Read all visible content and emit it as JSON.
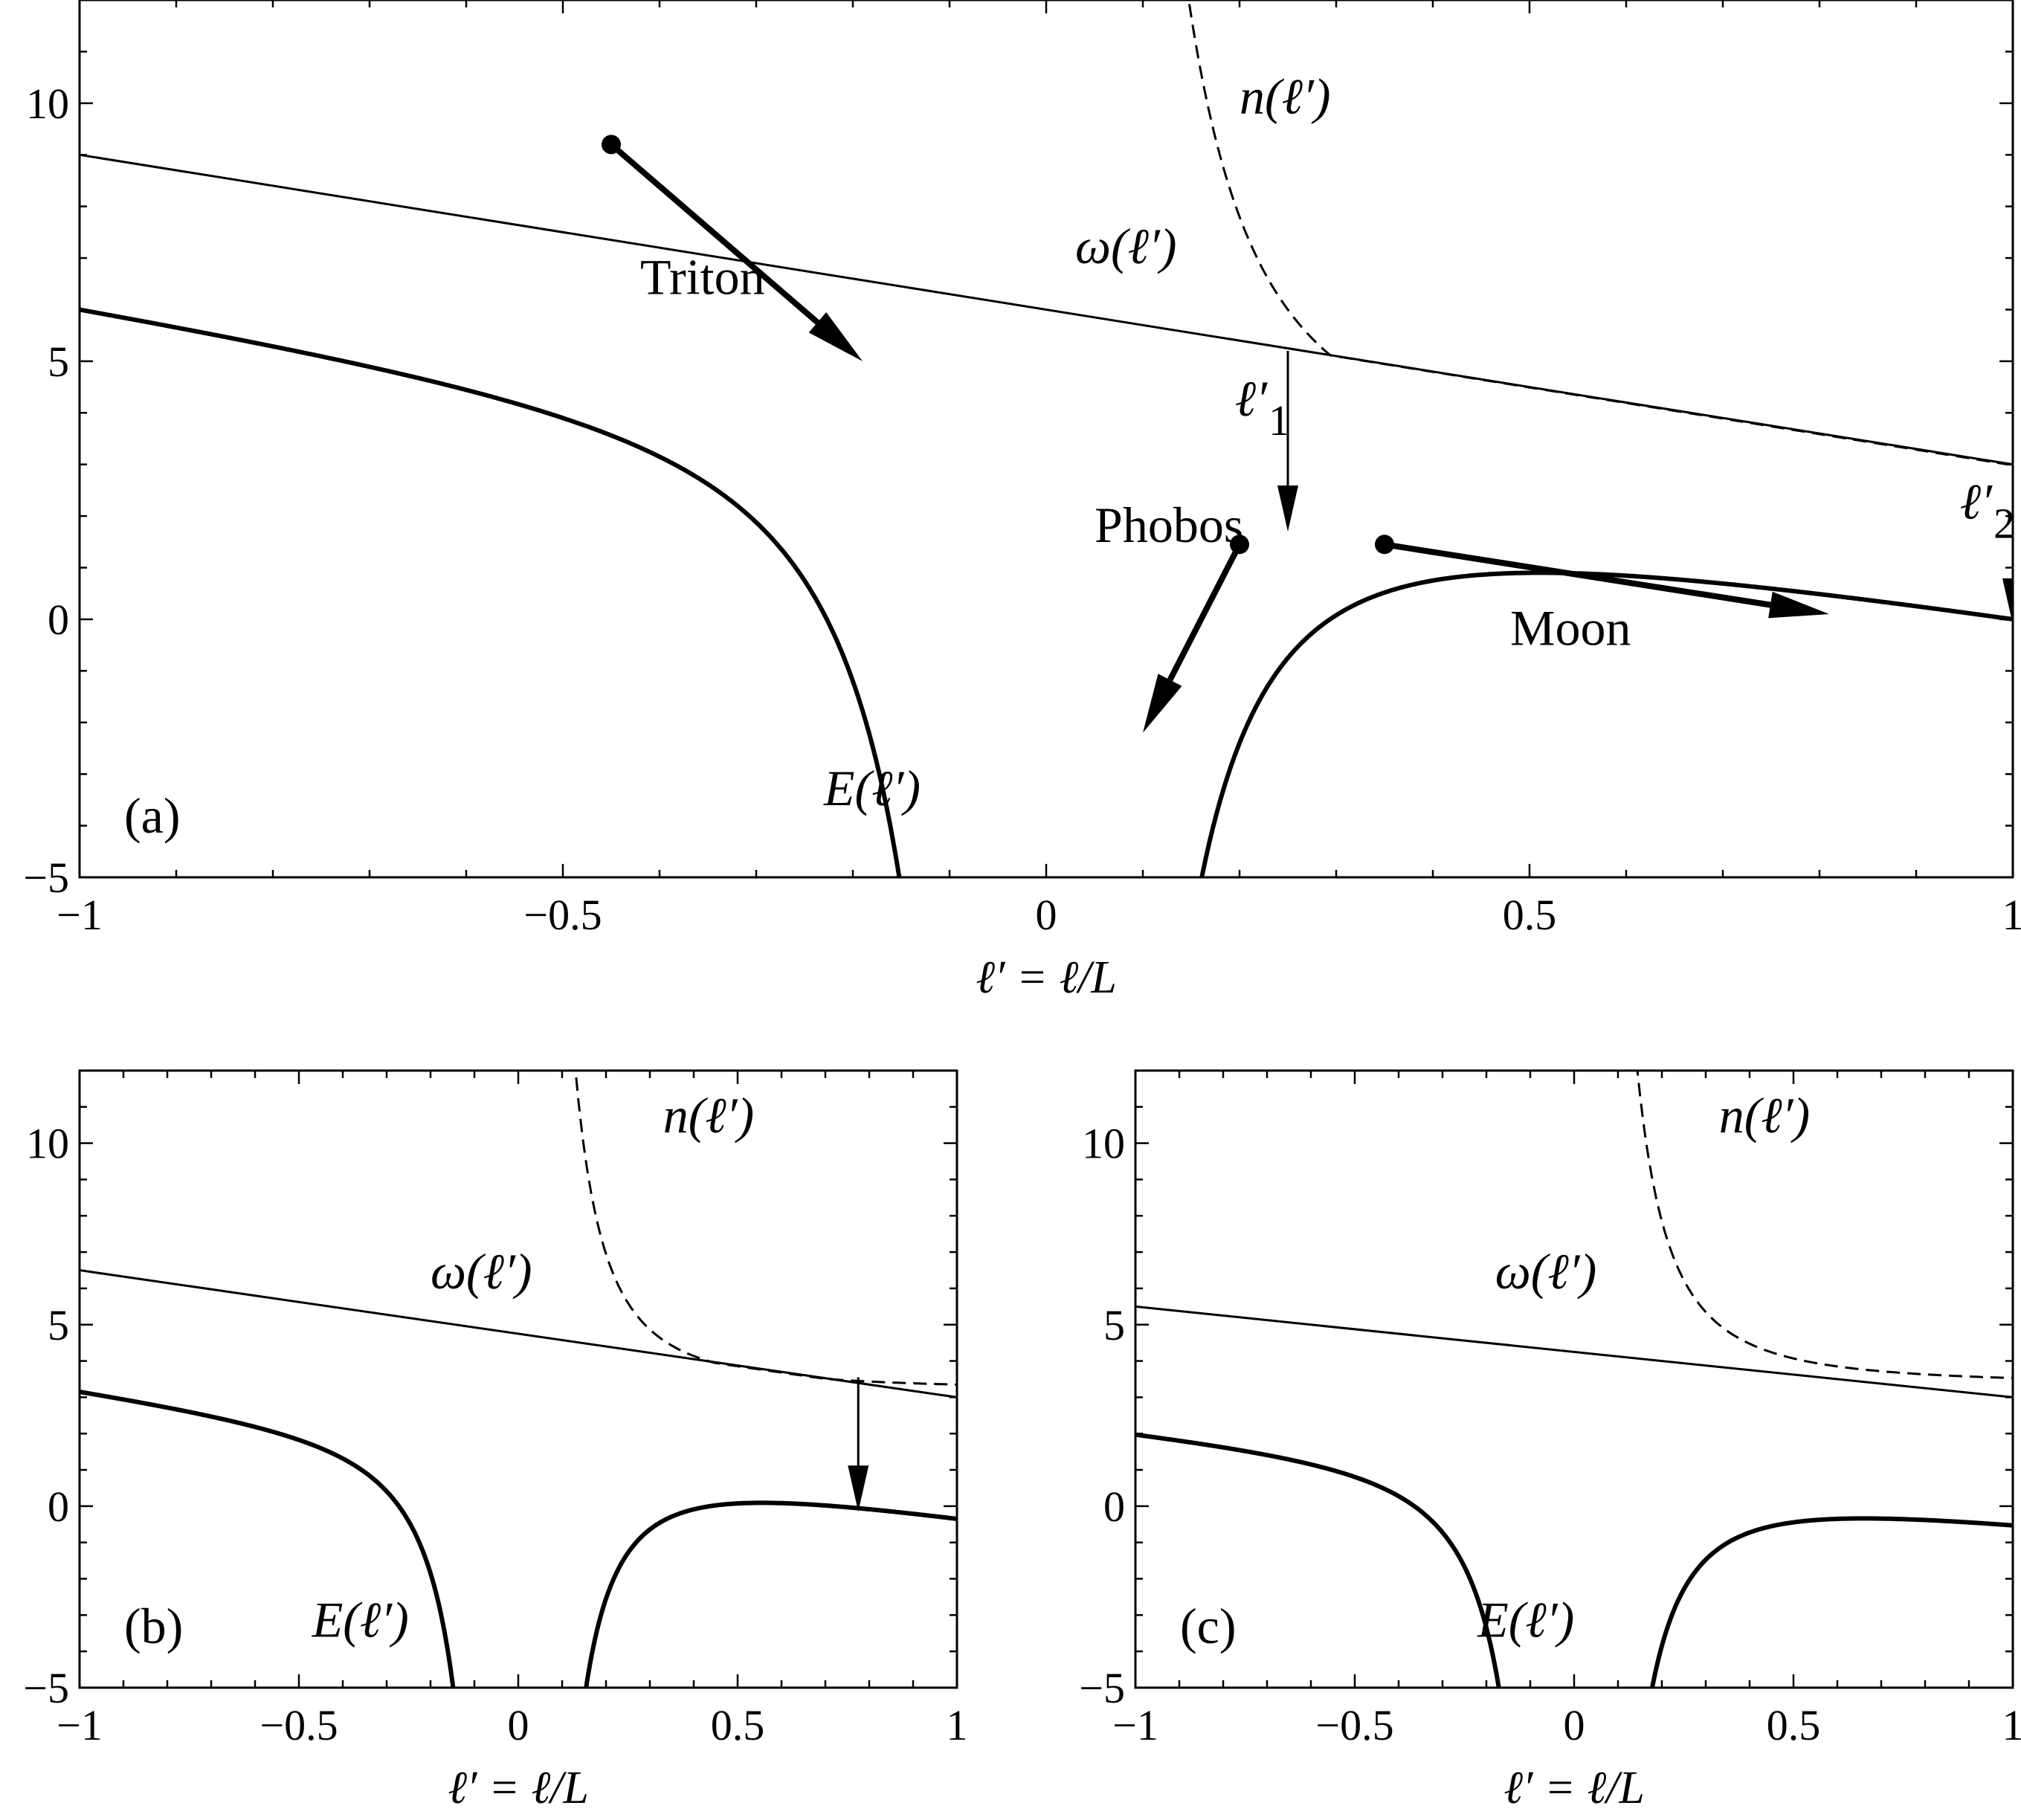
{
  "chart_data": [
    {
      "panel": "a",
      "type": "line",
      "panel_label": "(a)",
      "xlabel": "ℓ′ = ℓ/L",
      "xlim": [
        -1,
        1
      ],
      "ylim": [
        -5,
        12
      ],
      "xticks": [
        -1,
        -0.5,
        0,
        0.5,
        1
      ],
      "xtick_labels": [
        "−1",
        "−0.5",
        "0",
        "0.5",
        "1"
      ],
      "yticks": [
        -5,
        0,
        5,
        10
      ],
      "ytick_labels": [
        "−5",
        "0",
        "5",
        "10"
      ],
      "omega_line": {
        "label": "ω(ℓ′)",
        "x": [
          -1,
          1
        ],
        "y": [
          9,
          3
        ],
        "label_pos": [
          0.03,
          6.9
        ]
      },
      "n_curve": {
        "label": "n(ℓ′)",
        "a": 2.8,
        "b": 0.2,
        "c": 0.25,
        "x_end": 1,
        "label_pos": [
          0.2,
          9.8
        ]
      },
      "E_curve": {
        "label": "E(ℓ′)",
        "a": 2.8,
        "b": 0.2,
        "c": 0.25,
        "label_pos": [
          -0.23,
          -3.6
        ]
      },
      "points": [
        {
          "x": -0.45,
          "y": 9.2
        },
        {
          "x": 0.2,
          "y": 1.45
        },
        {
          "x": 0.35,
          "y": 1.45
        }
      ],
      "flow_arrows": [
        {
          "from": [
            -0.45,
            9.2
          ],
          "to": [
            -0.19,
            5.0
          ]
        },
        {
          "from": [
            0.2,
            1.45
          ],
          "to": [
            0.1,
            -2.2
          ]
        },
        {
          "from": [
            0.35,
            1.45
          ],
          "to": [
            0.81,
            0.1
          ]
        }
      ],
      "drop_arrows": [
        {
          "x": 0.25,
          "y_from": 5.2,
          "y_to": 1.7,
          "label": "ℓ′",
          "sub": "1"
        },
        {
          "x": 1.0,
          "y_from": 3.0,
          "y_to": -0.1,
          "label": "ℓ′",
          "sub": "2"
        }
      ],
      "annotations": [
        {
          "text": "Triton",
          "x": -0.42,
          "y": 6.3
        },
        {
          "text": "Phobos",
          "x": 0.05,
          "y": 1.5
        },
        {
          "text": "Moon",
          "x": 0.48,
          "y": -0.5
        }
      ]
    },
    {
      "panel": "b",
      "type": "line",
      "panel_label": "(b)",
      "xlabel": "ℓ′ = ℓ/L",
      "xlim": [
        -1,
        1
      ],
      "ylim": [
        -5,
        12
      ],
      "xticks": [
        -1,
        -0.5,
        0,
        0.5,
        1
      ],
      "xtick_labels": [
        "−1",
        "−0.5",
        "0",
        "0.5",
        "1"
      ],
      "yticks": [
        -5,
        0,
        5,
        10
      ],
      "ytick_labels": [
        "−5",
        "0",
        "5",
        "10"
      ],
      "omega_line": {
        "label": "ω(ℓ′)",
        "x": [
          -1,
          1
        ],
        "y": [
          6.5,
          3
        ],
        "label_pos": [
          -0.2,
          6.0
        ]
      },
      "n_curve": {
        "label": "n(ℓ′)",
        "a": 3.2,
        "b": 0.15,
        "c": 0.17,
        "x_end": 1,
        "label_pos": [
          0.33,
          10.3
        ]
      },
      "E_curve": {
        "label": "E(ℓ′)",
        "a": 3.2,
        "b": 0.15,
        "c": 0.17,
        "label_pos": [
          -0.47,
          -3.6
        ]
      },
      "drop_arrows": [
        {
          "x": 0.775,
          "y_from": 3.55,
          "y_to": -0.15
        }
      ]
    },
    {
      "panel": "c",
      "type": "line",
      "panel_label": "(c)",
      "xlabel": "ℓ′ = ℓ/L",
      "xlim": [
        -1,
        1
      ],
      "ylim": [
        -5,
        12
      ],
      "xticks": [
        -1,
        -0.5,
        0,
        0.5,
        1
      ],
      "xtick_labels": [
        "−1",
        "−0.5",
        "0",
        "0.5",
        "1"
      ],
      "yticks": [
        -5,
        0,
        5,
        10
      ],
      "ytick_labels": [
        "−5",
        "0",
        "5",
        "10"
      ],
      "omega_line": {
        "label": "ω(ℓ′)",
        "x": [
          -1,
          1
        ],
        "y": [
          5.5,
          3
        ],
        "label_pos": [
          -0.18,
          6.0
        ]
      },
      "n_curve": {
        "label": "n(ℓ′)",
        "a": 3.35,
        "b": 0.18,
        "c": 0.24,
        "x_end": 1,
        "label_pos": [
          0.33,
          10.3
        ]
      },
      "E_curve": {
        "label": "E(ℓ′)",
        "a": 3.35,
        "b": 0.18,
        "c": 0.24,
        "label_pos": [
          -0.22,
          -3.6
        ]
      }
    }
  ]
}
